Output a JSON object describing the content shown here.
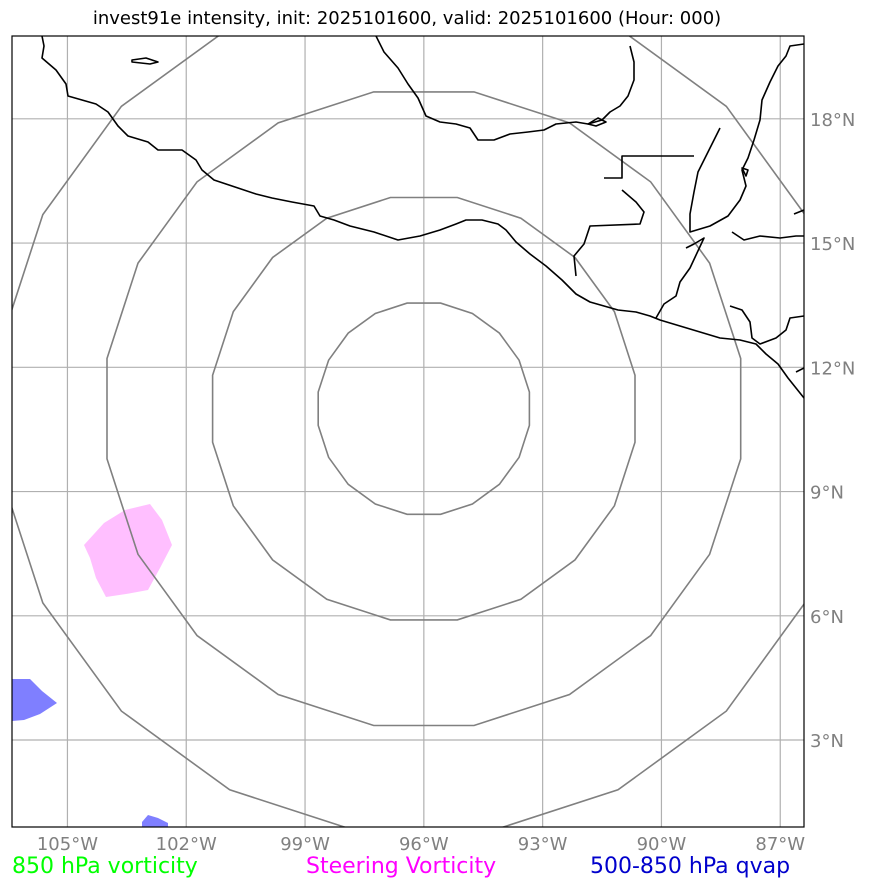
{
  "title": "invest91e intensity, init: 2025101600, valid: 2025101600 (Hour: 000)",
  "map": {
    "lon_range": [
      -106.4,
      -86.4
    ],
    "lat_range": [
      0.9,
      20.0
    ],
    "x_ticks": [
      {
        "lon": -105,
        "label": "105°W"
      },
      {
        "lon": -102,
        "label": "102°W"
      },
      {
        "lon": -99,
        "label": "99°W"
      },
      {
        "lon": -96,
        "label": "96°W"
      },
      {
        "lon": -93,
        "label": "93°W"
      },
      {
        "lon": -90,
        "label": "90°W"
      },
      {
        "lon": -87,
        "label": "87°W"
      }
    ],
    "y_ticks": [
      {
        "lat": 3,
        "label": "3°N"
      },
      {
        "lat": 6,
        "label": "6°N"
      },
      {
        "lat": 9,
        "label": "9°N"
      },
      {
        "lat": 12,
        "label": "12°N"
      },
      {
        "lat": 15,
        "label": "15°N"
      },
      {
        "lat": 18,
        "label": "18°N"
      }
    ],
    "grid": true,
    "storm_center": {
      "lon": -96.0,
      "lat": 11.0
    },
    "range_rings_deg": [
      2.7,
      5.4,
      8.1,
      10.8
    ]
  },
  "legend": [
    {
      "label": "850 hPa vorticity",
      "color": "#00ff00"
    },
    {
      "label": "Steering Vorticity",
      "color": "#ff00ff"
    },
    {
      "label": "500-850 hPa qvap",
      "color": "#0000cc"
    }
  ],
  "colors": {
    "grid": "#b0b0b0",
    "rings": "#808080",
    "coast": "#000000",
    "steering": "#ffbfff",
    "qvap": "#7f7fff"
  }
}
